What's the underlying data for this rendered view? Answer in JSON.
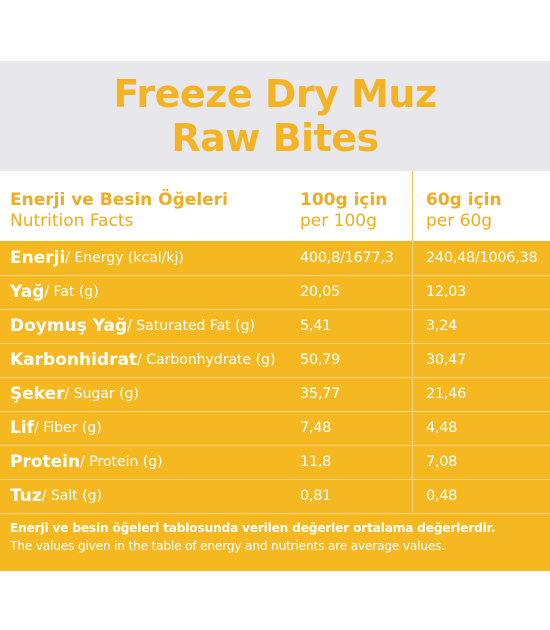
{
  "title": {
    "line1": "Freeze Dry Muz",
    "line2": "Raw Bites"
  },
  "header": {
    "name_tr": "Enerji ve Besin Öğeleri",
    "name_en": "Nutrition Facts",
    "col1_tr": "100g için",
    "col1_en": "per 100g",
    "col2_tr": "60g için",
    "col2_en": "per 60g"
  },
  "rows": [
    {
      "tr": "Enerji",
      "en": " / Energy (kcal/kj)",
      "v100": "400,8/1677,3",
      "v60": "240,48/1006,38"
    },
    {
      "tr": "Yağ",
      "en": " / Fat (g)",
      "v100": "20,05",
      "v60": "12,03"
    },
    {
      "tr": "Doymuş Yağ",
      "en": " / Saturated Fat (g)",
      "v100": "5,41",
      "v60": "3,24"
    },
    {
      "tr": "Karbonhidrat",
      "en": " / Carbonhydrate (g)",
      "v100": "50,79",
      "v60": "30,47"
    },
    {
      "tr": "Şeker",
      "en": " / Sugar (g)",
      "v100": "35,77",
      "v60": "21,46"
    },
    {
      "tr": "Lif",
      "en": " / Fiber (g)",
      "v100": "7,48",
      "v60": "4,48"
    },
    {
      "tr": "Protein",
      "en": " / Protein (g)",
      "v100": "11,8",
      "v60": "7,08"
    },
    {
      "tr": "Tuz",
      "en": " / Salt (g)",
      "v100": "0,81",
      "v60": "0,48"
    }
  ],
  "footnote": {
    "tr": "Enerji ve besin öğeleri tablosunda verilen değerler ortalama değerlerdir.",
    "en": "The values given in the table of energy and nutrients are average values."
  },
  "colors": {
    "accent": "#f4b322",
    "table_bg": "#f5b821",
    "title_band": "#e8e8ec"
  }
}
